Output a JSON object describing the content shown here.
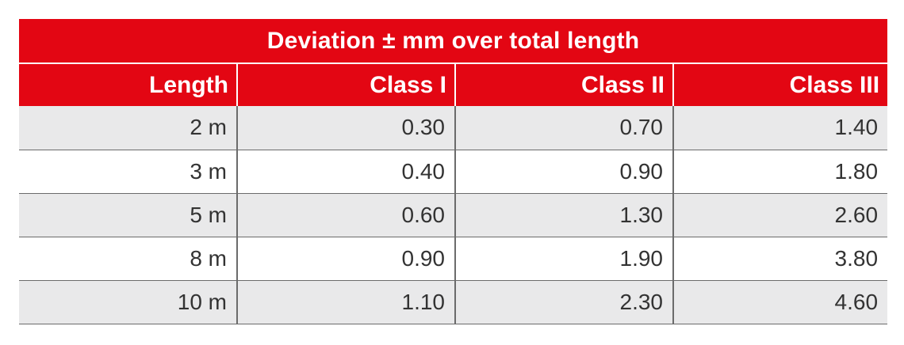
{
  "table": {
    "title": "Deviation ± mm over total length",
    "headers": [
      "Length",
      "Class I",
      "Class II",
      "Class III"
    ],
    "rows": [
      [
        "2 m",
        "0.30",
        "0.70",
        "1.40"
      ],
      [
        "3 m",
        "0.40",
        "0.90",
        "1.80"
      ],
      [
        "5 m",
        "0.60",
        "1.30",
        "2.60"
      ],
      [
        "8 m",
        "0.90",
        "1.90",
        "3.80"
      ],
      [
        "10 m",
        "1.10",
        "2.30",
        "4.60"
      ]
    ]
  },
  "colors": {
    "header_red": "#e30613",
    "row_shade": "#e9e9ea",
    "grid_line": "#6b6b6b"
  }
}
